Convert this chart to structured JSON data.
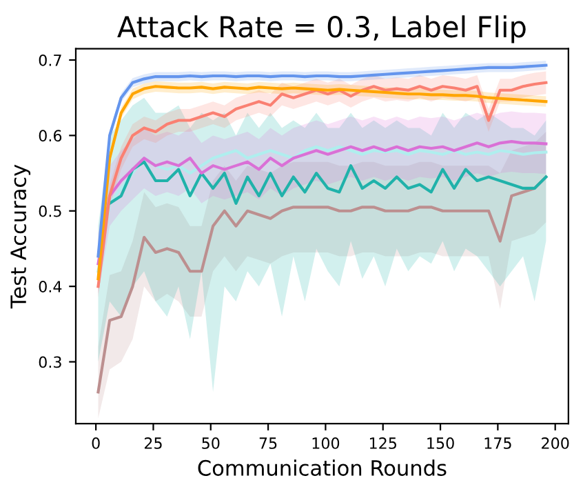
{
  "chart_data": {
    "type": "line",
    "title": "Attack Rate = 0.3, Label Flip",
    "xlabel": "Communication Rounds",
    "ylabel": "Test Accuracy",
    "x": [
      1,
      6,
      11,
      16,
      21,
      26,
      31,
      36,
      41,
      46,
      51,
      56,
      61,
      66,
      71,
      76,
      81,
      86,
      91,
      96,
      101,
      106,
      111,
      116,
      121,
      126,
      131,
      136,
      141,
      146,
      151,
      156,
      161,
      166,
      171,
      176,
      181,
      186,
      191,
      196
    ],
    "xlim": [
      -8.75,
      205.75
    ],
    "xticks": [
      0,
      25,
      50,
      75,
      100,
      125,
      150,
      175,
      200
    ],
    "ylim": [
      0.218,
      0.715
    ],
    "yticks": [
      0.3,
      0.4,
      0.5,
      0.6,
      0.7
    ],
    "grid": false,
    "series": [
      {
        "color": "#afeeee",
        "values": [
          0.42,
          0.51,
          0.53,
          0.55,
          0.57,
          0.56,
          0.555,
          0.56,
          0.55,
          0.56,
          0.57,
          0.575,
          0.58,
          0.57,
          0.575,
          0.58,
          0.575,
          0.57,
          0.58,
          0.585,
          0.58,
          0.585,
          0.58,
          0.575,
          0.58,
          0.578,
          0.58,
          0.575,
          0.58,
          0.578,
          0.575,
          0.58,
          0.575,
          0.578,
          0.575,
          0.58,
          0.578,
          0.575,
          0.577,
          0.578
        ]
      },
      {
        "color": "#bc8f8f",
        "values": [
          0.26,
          0.355,
          0.36,
          0.4,
          0.465,
          0.445,
          0.45,
          0.445,
          0.42,
          0.42,
          0.48,
          0.5,
          0.48,
          0.5,
          0.495,
          0.49,
          0.5,
          0.505,
          0.505,
          0.505,
          0.505,
          0.5,
          0.5,
          0.505,
          0.505,
          0.5,
          0.5,
          0.5,
          0.505,
          0.505,
          0.5,
          0.5,
          0.5,
          0.5,
          0.5,
          0.46,
          0.52,
          0.525,
          0.53,
          0.545
        ],
        "lower": [
          0.225,
          0.29,
          0.3,
          0.33,
          0.4,
          0.38,
          0.39,
          0.38,
          0.36,
          0.36,
          0.42,
          0.44,
          0.42,
          0.44,
          0.435,
          0.43,
          0.44,
          0.445,
          0.445,
          0.445,
          0.445,
          0.44,
          0.44,
          0.445,
          0.445,
          0.44,
          0.44,
          0.44,
          0.445,
          0.445,
          0.44,
          0.44,
          0.44,
          0.44,
          0.44,
          0.37,
          0.46,
          0.465,
          0.47,
          0.485
        ],
        "upper": [
          0.32,
          0.415,
          0.42,
          0.46,
          0.525,
          0.505,
          0.51,
          0.505,
          0.48,
          0.48,
          0.54,
          0.56,
          0.54,
          0.56,
          0.555,
          0.55,
          0.56,
          0.565,
          0.565,
          0.565,
          0.565,
          0.56,
          0.56,
          0.565,
          0.565,
          0.56,
          0.56,
          0.56,
          0.565,
          0.565,
          0.56,
          0.56,
          0.56,
          0.56,
          0.56,
          0.55,
          0.58,
          0.585,
          0.59,
          0.605
        ]
      },
      {
        "color": "#20b2aa",
        "values": [
          null,
          0.51,
          0.52,
          0.555,
          0.565,
          0.54,
          0.54,
          0.555,
          0.52,
          0.55,
          0.53,
          0.55,
          0.51,
          0.545,
          0.52,
          0.55,
          0.52,
          0.545,
          0.525,
          0.55,
          0.53,
          0.525,
          0.56,
          0.53,
          0.54,
          0.53,
          0.545,
          0.53,
          0.535,
          0.525,
          0.555,
          0.53,
          0.555,
          0.54,
          0.545,
          0.54,
          0.535,
          0.53,
          0.53,
          0.545
        ],
        "lower": [
          0.3,
          0.38,
          0.36,
          0.4,
          0.42,
          0.38,
          0.36,
          0.4,
          0.33,
          0.42,
          0.26,
          0.4,
          0.38,
          0.42,
          0.4,
          0.43,
          0.36,
          0.44,
          0.38,
          0.45,
          0.42,
          0.4,
          0.46,
          0.41,
          0.44,
          0.4,
          0.45,
          0.42,
          0.44,
          0.43,
          0.46,
          0.42,
          0.45,
          0.44,
          0.42,
          0.4,
          0.42,
          0.44,
          0.38,
          0.46
        ],
        "upper": [
          0.48,
          0.6,
          0.62,
          0.64,
          0.65,
          0.63,
          0.63,
          0.64,
          0.61,
          0.63,
          0.62,
          0.63,
          0.6,
          0.63,
          0.61,
          0.63,
          0.61,
          0.62,
          0.61,
          0.63,
          0.61,
          0.61,
          0.63,
          0.61,
          0.62,
          0.61,
          0.62,
          0.61,
          0.61,
          0.6,
          0.63,
          0.61,
          0.63,
          0.62,
          0.63,
          0.62,
          0.61,
          0.61,
          0.6,
          0.62
        ]
      },
      {
        "color": "#da70d6",
        "values": [
          0.43,
          0.52,
          0.54,
          0.555,
          0.57,
          0.56,
          0.565,
          0.56,
          0.57,
          0.55,
          0.56,
          0.555,
          0.56,
          0.565,
          0.555,
          0.57,
          0.56,
          0.57,
          0.575,
          0.58,
          0.575,
          0.58,
          0.585,
          0.58,
          0.585,
          0.58,
          0.585,
          0.58,
          0.585,
          0.583,
          0.585,
          0.58,
          0.585,
          0.59,
          0.585,
          0.59,
          0.592,
          0.59,
          0.59,
          0.589
        ],
        "lower": [
          0.39,
          0.48,
          0.5,
          0.515,
          0.53,
          0.52,
          0.525,
          0.52,
          0.53,
          0.51,
          0.52,
          0.515,
          0.52,
          0.525,
          0.515,
          0.53,
          0.52,
          0.53,
          0.535,
          0.54,
          0.535,
          0.54,
          0.545,
          0.54,
          0.545,
          0.54,
          0.545,
          0.54,
          0.545,
          0.543,
          0.545,
          0.54,
          0.545,
          0.55,
          0.545,
          0.55,
          0.552,
          0.55,
          0.55,
          0.549
        ],
        "upper": [
          0.47,
          0.56,
          0.58,
          0.595,
          0.61,
          0.6,
          0.605,
          0.6,
          0.61,
          0.59,
          0.6,
          0.595,
          0.6,
          0.605,
          0.595,
          0.61,
          0.6,
          0.61,
          0.615,
          0.62,
          0.615,
          0.62,
          0.625,
          0.62,
          0.625,
          0.62,
          0.625,
          0.62,
          0.625,
          0.623,
          0.625,
          0.62,
          0.625,
          0.63,
          0.625,
          0.63,
          0.632,
          0.63,
          0.63,
          0.629
        ]
      },
      {
        "color": "#fa8072",
        "values": [
          0.4,
          0.52,
          0.57,
          0.6,
          0.61,
          0.605,
          0.615,
          0.62,
          0.62,
          0.625,
          0.63,
          0.625,
          0.635,
          0.64,
          0.645,
          0.64,
          0.655,
          0.65,
          0.655,
          0.66,
          0.655,
          0.66,
          0.652,
          0.66,
          0.665,
          0.66,
          0.662,
          0.66,
          0.665,
          0.66,
          0.665,
          0.663,
          0.66,
          0.665,
          0.62,
          0.66,
          0.66,
          0.665,
          0.668,
          0.67
        ],
        "lower": [
          0.385,
          0.505,
          0.555,
          0.585,
          0.595,
          0.59,
          0.6,
          0.605,
          0.605,
          0.61,
          0.615,
          0.61,
          0.62,
          0.625,
          0.63,
          0.625,
          0.64,
          0.635,
          0.64,
          0.645,
          0.64,
          0.645,
          0.637,
          0.645,
          0.65,
          0.645,
          0.647,
          0.645,
          0.65,
          0.645,
          0.65,
          0.648,
          0.645,
          0.65,
          0.605,
          0.645,
          0.645,
          0.65,
          0.653,
          0.655
        ],
        "upper": [
          0.415,
          0.535,
          0.585,
          0.615,
          0.625,
          0.62,
          0.63,
          0.635,
          0.635,
          0.64,
          0.645,
          0.64,
          0.65,
          0.655,
          0.66,
          0.655,
          0.67,
          0.665,
          0.67,
          0.675,
          0.67,
          0.675,
          0.667,
          0.675,
          0.68,
          0.675,
          0.677,
          0.675,
          0.68,
          0.675,
          0.68,
          0.678,
          0.675,
          0.68,
          0.635,
          0.675,
          0.675,
          0.68,
          0.683,
          0.685
        ]
      },
      {
        "color": "#ffa500",
        "values": [
          0.41,
          0.57,
          0.63,
          0.655,
          0.662,
          0.665,
          0.664,
          0.663,
          0.663,
          0.664,
          0.662,
          0.664,
          0.663,
          0.662,
          0.664,
          0.663,
          0.662,
          0.663,
          0.662,
          0.661,
          0.66,
          0.661,
          0.66,
          0.659,
          0.658,
          0.657,
          0.656,
          0.655,
          0.655,
          0.654,
          0.654,
          0.653,
          0.653,
          0.652,
          0.65,
          0.649,
          0.648,
          0.647,
          0.646,
          0.645
        ],
        "lower": [
          0.403,
          0.563,
          0.623,
          0.648,
          0.655,
          0.658,
          0.657,
          0.656,
          0.656,
          0.657,
          0.655,
          0.657,
          0.656,
          0.655,
          0.657,
          0.656,
          0.655,
          0.656,
          0.655,
          0.654,
          0.653,
          0.654,
          0.653,
          0.652,
          0.651,
          0.65,
          0.649,
          0.648,
          0.648,
          0.647,
          0.647,
          0.646,
          0.646,
          0.645,
          0.643,
          0.642,
          0.641,
          0.64,
          0.639,
          0.638
        ],
        "upper": [
          0.417,
          0.577,
          0.637,
          0.662,
          0.669,
          0.672,
          0.671,
          0.67,
          0.67,
          0.671,
          0.669,
          0.671,
          0.67,
          0.669,
          0.671,
          0.67,
          0.669,
          0.67,
          0.669,
          0.668,
          0.667,
          0.668,
          0.667,
          0.666,
          0.665,
          0.664,
          0.663,
          0.662,
          0.662,
          0.661,
          0.661,
          0.66,
          0.66,
          0.659,
          0.657,
          0.656,
          0.655,
          0.654,
          0.653,
          0.652
        ]
      },
      {
        "color": "#6495ed",
        "values": [
          0.44,
          0.6,
          0.65,
          0.67,
          0.675,
          0.678,
          0.678,
          0.678,
          0.679,
          0.678,
          0.679,
          0.679,
          0.678,
          0.679,
          0.679,
          0.678,
          0.679,
          0.679,
          0.678,
          0.679,
          0.679,
          0.678,
          0.678,
          0.679,
          0.68,
          0.681,
          0.682,
          0.683,
          0.684,
          0.685,
          0.686,
          0.687,
          0.688,
          0.689,
          0.69,
          0.69,
          0.69,
          0.691,
          0.692,
          0.693
        ],
        "lower": [
          0.434,
          0.594,
          0.644,
          0.664,
          0.669,
          0.672,
          0.672,
          0.672,
          0.673,
          0.672,
          0.673,
          0.673,
          0.672,
          0.673,
          0.673,
          0.672,
          0.673,
          0.673,
          0.672,
          0.673,
          0.673,
          0.672,
          0.672,
          0.673,
          0.674,
          0.675,
          0.676,
          0.677,
          0.678,
          0.679,
          0.68,
          0.681,
          0.682,
          0.683,
          0.684,
          0.684,
          0.684,
          0.685,
          0.686,
          0.687
        ],
        "upper": [
          0.446,
          0.606,
          0.656,
          0.676,
          0.681,
          0.684,
          0.684,
          0.684,
          0.685,
          0.684,
          0.685,
          0.685,
          0.684,
          0.685,
          0.685,
          0.684,
          0.685,
          0.685,
          0.684,
          0.685,
          0.685,
          0.684,
          0.684,
          0.685,
          0.686,
          0.687,
          0.688,
          0.689,
          0.69,
          0.691,
          0.692,
          0.693,
          0.694,
          0.695,
          0.696,
          0.696,
          0.696,
          0.697,
          0.698,
          0.699
        ]
      }
    ]
  }
}
